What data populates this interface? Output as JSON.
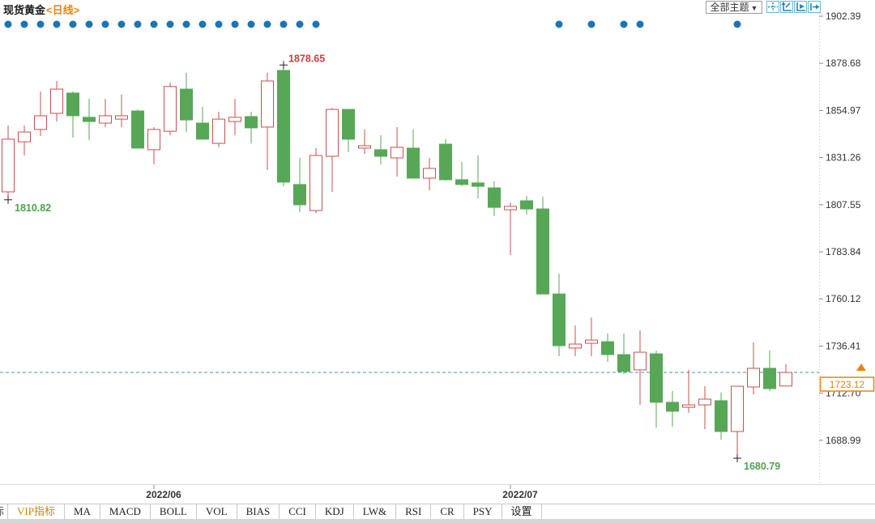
{
  "header": {
    "title": "现货黄金",
    "period": "<日线>",
    "theme_selector": {
      "label": "全部主题",
      "arrow": "▼"
    }
  },
  "toolbar": {
    "partial_tab": "标",
    "tabs": [
      "VIP指标",
      "MA",
      "MACD",
      "BOLL",
      "VOL",
      "BIAS",
      "CCI",
      "KDJ",
      "LW&",
      "RSI",
      "CR",
      "PSY",
      "设置"
    ],
    "active_tab": "VIP指标"
  },
  "colors": {
    "up": "#c8504c",
    "down": "#57a757",
    "event_dot": "#1b75b5",
    "current_line": "#4a8fc0",
    "price_accent": "#e8860a",
    "low_label": "#4ca34c",
    "high_label": "#d23c3c",
    "axis_text": "#333333",
    "border": "#d9d9d9",
    "icon_blue": "#2286b8",
    "tab_active": "#c8860a"
  },
  "chart_data": {
    "type": "candlestick",
    "symbol": "现货黄金",
    "interval": "日线",
    "y_axis": {
      "top_price": 1902.39,
      "step": 23.71,
      "labels": [
        "1902.39",
        "1878.68",
        "1854.97",
        "1831.26",
        "1807.55",
        "1783.84",
        "1760.12",
        "1736.41",
        "1712.70",
        "1688.99"
      ]
    },
    "x_ticks": [
      {
        "label": "2022/06",
        "index": 9
      },
      {
        "label": "2022/07",
        "index": 31
      }
    ],
    "current_price": "1723.12",
    "annotations": [
      {
        "type": "high",
        "value": "1878.65",
        "index": 17
      },
      {
        "type": "low",
        "value": "1810.82",
        "index": 0
      },
      {
        "type": "low",
        "value": "1680.79",
        "index": 45
      }
    ],
    "event_marker_indices": [
      0,
      1,
      2,
      3,
      4,
      5,
      6,
      7,
      8,
      9,
      10,
      11,
      12,
      13,
      14,
      15,
      16,
      17,
      18,
      19,
      34,
      36,
      38,
      39,
      45
    ],
    "candles": [
      [
        1814.0,
        1847.4,
        1810.82,
        1840.5
      ],
      [
        1839.2,
        1847.4,
        1832.3,
        1844.1
      ],
      [
        1845.4,
        1864.5,
        1842.1,
        1852.3
      ],
      [
        1853.5,
        1869.8,
        1849.4,
        1865.7
      ],
      [
        1863.7,
        1864.5,
        1841.3,
        1852.3
      ],
      [
        1851.5,
        1860.8,
        1840.1,
        1849.4
      ],
      [
        1848.6,
        1860.8,
        1846.6,
        1852.3
      ],
      [
        1850.6,
        1862.9,
        1846.6,
        1852.3
      ],
      [
        1854.7,
        1855.5,
        1836.0,
        1836.0
      ],
      [
        1835.2,
        1846.6,
        1827.8,
        1845.4
      ],
      [
        1844.5,
        1869.0,
        1842.5,
        1867.0
      ],
      [
        1865.7,
        1873.9,
        1844.1,
        1850.2
      ],
      [
        1848.6,
        1856.8,
        1840.5,
        1840.5
      ],
      [
        1838.4,
        1854.3,
        1836.4,
        1850.6
      ],
      [
        1849.4,
        1860.8,
        1842.5,
        1851.5
      ],
      [
        1851.9,
        1854.3,
        1838.4,
        1846.2
      ],
      [
        1846.6,
        1873.9,
        1825.0,
        1869.8
      ],
      [
        1875.1,
        1878.65,
        1816.8,
        1818.9
      ],
      [
        1817.7,
        1831.1,
        1803.8,
        1807.5
      ],
      [
        1804.6,
        1836.0,
        1803.4,
        1832.3
      ],
      [
        1831.9,
        1856.3,
        1814.0,
        1855.5
      ],
      [
        1855.5,
        1855.5,
        1834.0,
        1840.5
      ],
      [
        1836.0,
        1845.4,
        1833.1,
        1837.2
      ],
      [
        1835.2,
        1842.5,
        1827.8,
        1831.9
      ],
      [
        1831.1,
        1846.6,
        1821.7,
        1836.4
      ],
      [
        1836.0,
        1845.4,
        1820.9,
        1820.9
      ],
      [
        1820.9,
        1831.1,
        1814.8,
        1825.8
      ],
      [
        1838.0,
        1840.5,
        1819.7,
        1820.1
      ],
      [
        1820.1,
        1829.1,
        1816.8,
        1817.7
      ],
      [
        1818.5,
        1832.3,
        1810.7,
        1816.8
      ],
      [
        1816.0,
        1819.3,
        1801.8,
        1806.2
      ],
      [
        1805.0,
        1808.7,
        1782.2,
        1806.7
      ],
      [
        1809.5,
        1812.0,
        1802.6,
        1805.4
      ],
      [
        1805.4,
        1811.5,
        1762.6,
        1762.6
      ],
      [
        1762.6,
        1772.8,
        1731.3,
        1736.6
      ],
      [
        1735.4,
        1746.7,
        1731.3,
        1737.4
      ],
      [
        1737.8,
        1750.8,
        1731.3,
        1739.4
      ],
      [
        1738.6,
        1742.7,
        1728.4,
        1732.1
      ],
      [
        1732.1,
        1742.7,
        1722.3,
        1723.6
      ],
      [
        1724.4,
        1744.3,
        1706.8,
        1733.3
      ],
      [
        1732.5,
        1734.1,
        1695.4,
        1708.1
      ],
      [
        1708.1,
        1713.8,
        1695.8,
        1703.6
      ],
      [
        1705.6,
        1724.4,
        1702.8,
        1706.8
      ],
      [
        1706.8,
        1716.2,
        1694.6,
        1709.7
      ],
      [
        1708.9,
        1713.0,
        1689.3,
        1693.4
      ],
      [
        1693.4,
        1716.2,
        1680.79,
        1716.2
      ],
      [
        1715.8,
        1738.2,
        1712.1,
        1725.2
      ],
      [
        1725.2,
        1734.1,
        1713.8,
        1715.0
      ],
      [
        1716.3,
        1727.2,
        1716.2,
        1723.12
      ]
    ]
  }
}
